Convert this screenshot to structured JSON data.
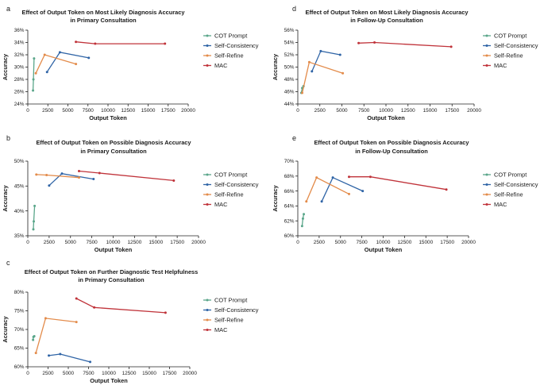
{
  "chart_data": [
    {
      "panel": "a",
      "type": "line",
      "title": [
        "Effect of Output Token on Most Likely Diagnosis Accuracy",
        "in Primary Consultation"
      ],
      "xlabel": "Output Token",
      "ylabel": "Accuracy",
      "xlim": [
        0,
        20000
      ],
      "ylim": [
        24,
        36
      ],
      "xticks": [
        0,
        2500,
        5000,
        7500,
        10000,
        12500,
        15000,
        17500,
        20000
      ],
      "xtick_labels": [
        "0",
        "2500",
        "5000",
        "7500",
        "10000",
        "12500",
        "15000",
        "17500",
        "20000"
      ],
      "yticks": [
        24,
        26,
        28,
        30,
        32,
        34,
        36
      ],
      "ytick_labels": [
        "24%",
        "26%",
        "28%",
        "30%",
        "32%",
        "34%",
        "36%"
      ],
      "series": [
        {
          "name": "COT Prompt",
          "color": "#5aa68a",
          "x": [
            650,
            700,
            780
          ],
          "y": [
            26.2,
            28.0,
            31.4
          ]
        },
        {
          "name": "Self-Consistency",
          "color": "#2f64a6",
          "x": [
            2400,
            4000,
            7600
          ],
          "y": [
            29.2,
            32.4,
            31.5
          ]
        },
        {
          "name": "Self-Refine",
          "color": "#e38b4a",
          "x": [
            1000,
            2100,
            6000
          ],
          "y": [
            29.0,
            32.0,
            30.5
          ]
        },
        {
          "name": "MAC",
          "color": "#c0333a",
          "x": [
            6000,
            8400,
            17100
          ],
          "y": [
            34.1,
            33.8,
            33.8
          ]
        }
      ]
    },
    {
      "panel": "b",
      "type": "line",
      "title": [
        "Effect of Output Token on Possible Diagnosis Accuracy",
        "in Primary Consultation"
      ],
      "xlabel": "Output Token",
      "ylabel": "Accuracy",
      "xlim": [
        0,
        20000
      ],
      "ylim": [
        35,
        50
      ],
      "xticks": [
        0,
        2500,
        5000,
        7500,
        10000,
        12500,
        15000,
        17500,
        20000
      ],
      "xtick_labels": [
        "0",
        "2500",
        "5000",
        "7500",
        "10000",
        "12500",
        "15000",
        "17500",
        "20000"
      ],
      "yticks": [
        35,
        40,
        45,
        50
      ],
      "ytick_labels": [
        "35%",
        "40%",
        "45%",
        "50%"
      ],
      "series": [
        {
          "name": "COT Prompt",
          "color": "#5aa68a",
          "x": [
            650,
            700,
            800
          ],
          "y": [
            36.3,
            37.9,
            41.0
          ]
        },
        {
          "name": "Self-Consistency",
          "color": "#2f64a6",
          "x": [
            2500,
            4000,
            7700
          ],
          "y": [
            45.1,
            47.5,
            46.4
          ]
        },
        {
          "name": "Self-Refine",
          "color": "#e38b4a",
          "x": [
            1000,
            2200,
            6000
          ],
          "y": [
            47.3,
            47.2,
            46.7
          ]
        },
        {
          "name": "MAC",
          "color": "#c0333a",
          "x": [
            6000,
            8400,
            17100
          ],
          "y": [
            48.0,
            47.6,
            46.1
          ]
        }
      ]
    },
    {
      "panel": "c",
      "type": "line",
      "title": [
        "Effect of Output Token on Further Diagnostic Test Helpfulness",
        "in Primary Consultation"
      ],
      "xlabel": "Output Token",
      "ylabel": "Accuracy",
      "xlim": [
        0,
        20000
      ],
      "ylim": [
        60,
        80
      ],
      "xticks": [
        0,
        2500,
        5000,
        7500,
        10000,
        12500,
        15000,
        17500,
        20000
      ],
      "xtick_labels": [
        "0",
        "2500",
        "5000",
        "7500",
        "10000",
        "12500",
        "15000",
        "17500",
        "20000"
      ],
      "yticks": [
        60,
        65,
        70,
        75,
        80
      ],
      "ytick_labels": [
        "60%",
        "65%",
        "70%",
        "75%",
        "80%"
      ],
      "series": [
        {
          "name": "COT Prompt",
          "color": "#5aa68a",
          "x": [
            650,
            700,
            800
          ],
          "y": [
            67.2,
            68.0,
            68.2
          ]
        },
        {
          "name": "Self-Consistency",
          "color": "#2f64a6",
          "x": [
            2600,
            4000,
            7700
          ],
          "y": [
            63.0,
            63.4,
            61.3
          ]
        },
        {
          "name": "Self-Refine",
          "color": "#e38b4a",
          "x": [
            1000,
            2200,
            6000
          ],
          "y": [
            63.7,
            73.0,
            72.0
          ]
        },
        {
          "name": "MAC",
          "color": "#c0333a",
          "x": [
            6000,
            8200,
            17000
          ],
          "y": [
            78.3,
            75.9,
            74.5
          ]
        }
      ]
    },
    {
      "panel": "d",
      "type": "line",
      "title": [
        "Effect of Output Token on Most Likely Diagnosis Accuracy",
        "in Follow-Up Consultation"
      ],
      "xlabel": "Output Token",
      "ylabel": "Accuracy",
      "xlim": [
        0,
        20000
      ],
      "ylim": [
        44,
        56
      ],
      "xticks": [
        0,
        2500,
        5000,
        7500,
        10000,
        12500,
        15000,
        17500,
        20000
      ],
      "xtick_labels": [
        "0",
        "2500",
        "5000",
        "7500",
        "10000",
        "12500",
        "15000",
        "17500",
        "20000"
      ],
      "yticks": [
        44,
        46,
        48,
        50,
        52,
        54,
        56
      ],
      "ytick_labels": [
        "44%",
        "46%",
        "48%",
        "50%",
        "52%",
        "54%",
        "56%"
      ],
      "series": [
        {
          "name": "COT Prompt",
          "color": "#5aa68a",
          "x": [
            400,
            500,
            650
          ],
          "y": [
            45.8,
            46.6,
            46.9
          ]
        },
        {
          "name": "Self-Consistency",
          "color": "#2f64a6",
          "x": [
            1600,
            2600,
            4800
          ],
          "y": [
            49.3,
            52.6,
            52.0
          ]
        },
        {
          "name": "Self-Refine",
          "color": "#e38b4a",
          "x": [
            500,
            1300,
            5100
          ],
          "y": [
            45.8,
            50.8,
            49.0
          ]
        },
        {
          "name": "MAC",
          "color": "#c0333a",
          "x": [
            6900,
            8700,
            17400
          ],
          "y": [
            53.9,
            54.0,
            53.3
          ]
        }
      ]
    },
    {
      "panel": "e",
      "type": "line",
      "title": [
        "Effect of Output Token on Possible Diagnosis Accuracy",
        "in Follow-Up Consultation"
      ],
      "xlabel": "Output Token",
      "ylabel": "Accuracy",
      "xlim": [
        0,
        20000
      ],
      "ylim": [
        60,
        70
      ],
      "xticks": [
        0,
        2500,
        5000,
        7500,
        10000,
        12500,
        15000,
        17500,
        20000
      ],
      "xtick_labels": [
        "0",
        "2500",
        "5000",
        "7500",
        "10000",
        "12500",
        "15000",
        "17500",
        "20000"
      ],
      "yticks": [
        60,
        62,
        64,
        66,
        68,
        70
      ],
      "ytick_labels": [
        "60%",
        "62%",
        "64%",
        "66%",
        "68%",
        "70%"
      ],
      "series": [
        {
          "name": "COT Prompt",
          "color": "#5aa68a",
          "x": [
            500,
            600,
            700
          ],
          "y": [
            61.3,
            62.3,
            62.9
          ]
        },
        {
          "name": "Self-Consistency",
          "color": "#2f64a6",
          "x": [
            2800,
            4100,
            7600
          ],
          "y": [
            64.6,
            67.8,
            66.0
          ]
        },
        {
          "name": "Self-Refine",
          "color": "#e38b4a",
          "x": [
            1000,
            2200,
            6000
          ],
          "y": [
            64.6,
            67.8,
            65.6
          ]
        },
        {
          "name": "MAC",
          "color": "#c0333a",
          "x": [
            6000,
            8500,
            17400
          ],
          "y": [
            67.9,
            67.9,
            66.2
          ]
        }
      ]
    }
  ]
}
